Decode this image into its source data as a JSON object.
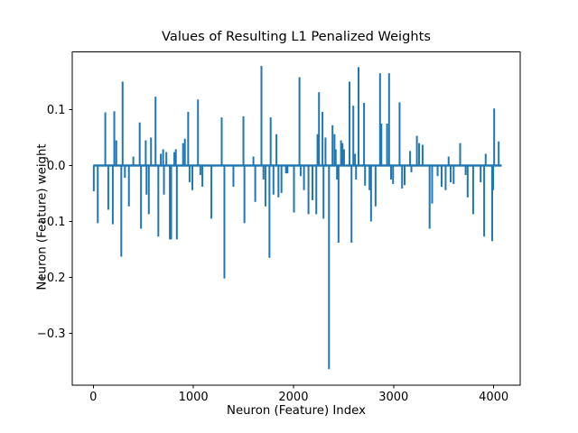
{
  "chart_data": {
    "type": "bar",
    "title": "Values of Resulting L1 Penalized Weights",
    "xlabel": "Neuron (Feature) Index",
    "ylabel": "Neuron (Feature) weight",
    "bar_color": "#1f77b4",
    "grid": false,
    "legend": false,
    "xlim": [
      -210,
      4265
    ],
    "ylim": [
      -0.393,
      0.203
    ],
    "xticks": [
      0,
      1000,
      2000,
      3000,
      4000
    ],
    "xticklabels": [
      "0",
      "1000",
      "2000",
      "3000",
      "4000"
    ],
    "yticks": [
      0.1,
      0.0,
      -0.1,
      -0.2,
      -0.3
    ],
    "yticklabels": [
      "0.1",
      "0.0",
      "−0.1",
      "−0.2",
      "−0.3"
    ],
    "baseline": {
      "from": 0,
      "to": 4080,
      "value": 0.0
    },
    "points": [
      [
        5,
        -0.046
      ],
      [
        45,
        -0.103
      ],
      [
        120,
        0.095
      ],
      [
        150,
        -0.079
      ],
      [
        195,
        -0.105
      ],
      [
        210,
        0.097
      ],
      [
        230,
        0.045
      ],
      [
        280,
        -0.163
      ],
      [
        293,
        0.15
      ],
      [
        316,
        -0.022
      ],
      [
        356,
        -0.073
      ],
      [
        400,
        0.016
      ],
      [
        464,
        0.077
      ],
      [
        477,
        -0.113
      ],
      [
        524,
        0.045
      ],
      [
        532,
        -0.052
      ],
      [
        555,
        -0.087
      ],
      [
        577,
        0.05
      ],
      [
        622,
        0.123
      ],
      [
        650,
        -0.127
      ],
      [
        675,
        0.021
      ],
      [
        698,
        0.029
      ],
      [
        706,
        -0.052
      ],
      [
        730,
        0.024
      ],
      [
        765,
        -0.132
      ],
      [
        778,
        -0.132
      ],
      [
        810,
        0.024
      ],
      [
        825,
        0.029
      ],
      [
        835,
        -0.132
      ],
      [
        897,
        0.04
      ],
      [
        915,
        0.048
      ],
      [
        948,
        0.096
      ],
      [
        962,
        -0.03
      ],
      [
        990,
        -0.044
      ],
      [
        1046,
        0.118
      ],
      [
        1070,
        -0.017
      ],
      [
        1090,
        -0.038
      ],
      [
        1180,
        -0.095
      ],
      [
        1283,
        0.086
      ],
      [
        1310,
        -0.202
      ],
      [
        1400,
        -0.038
      ],
      [
        1500,
        0.088
      ],
      [
        1510,
        -0.103
      ],
      [
        1600,
        0.016
      ],
      [
        1618,
        -0.065
      ],
      [
        1680,
        0.178
      ],
      [
        1700,
        -0.025
      ],
      [
        1720,
        -0.073
      ],
      [
        1760,
        -0.165
      ],
      [
        1772,
        0.086
      ],
      [
        1800,
        -0.052
      ],
      [
        1830,
        0.056
      ],
      [
        1850,
        -0.057
      ],
      [
        1880,
        -0.049
      ],
      [
        1925,
        -0.014
      ],
      [
        1940,
        -0.014
      ],
      [
        2005,
        -0.084
      ],
      [
        2060,
        0.158
      ],
      [
        2072,
        -0.019
      ],
      [
        2105,
        -0.044
      ],
      [
        2150,
        -0.087
      ],
      [
        2190,
        -0.062
      ],
      [
        2228,
        -0.087
      ],
      [
        2240,
        0.056
      ],
      [
        2255,
        0.131
      ],
      [
        2290,
        0.096
      ],
      [
        2300,
        -0.095
      ],
      [
        2320,
        0.05
      ],
      [
        2355,
        -0.364
      ],
      [
        2390,
        0.072
      ],
      [
        2410,
        0.056
      ],
      [
        2422,
        0.029
      ],
      [
        2435,
        -0.025
      ],
      [
        2450,
        -0.138
      ],
      [
        2475,
        0.045
      ],
      [
        2490,
        0.04
      ],
      [
        2505,
        0.029
      ],
      [
        2560,
        0.15
      ],
      [
        2580,
        -0.138
      ],
      [
        2598,
        0.107
      ],
      [
        2615,
        0.021
      ],
      [
        2625,
        -0.025
      ],
      [
        2650,
        0.176
      ],
      [
        2705,
        0.112
      ],
      [
        2715,
        -0.036
      ],
      [
        2760,
        -0.044
      ],
      [
        2775,
        -0.1
      ],
      [
        2820,
        -0.073
      ],
      [
        2865,
        0.165
      ],
      [
        2878,
        0.075
      ],
      [
        2935,
        0.075
      ],
      [
        2955,
        0.165
      ],
      [
        2975,
        -0.025
      ],
      [
        2995,
        -0.033
      ],
      [
        3060,
        0.113
      ],
      [
        3085,
        -0.041
      ],
      [
        3110,
        -0.035
      ],
      [
        3165,
        0.026
      ],
      [
        3178,
        -0.012
      ],
      [
        3233,
        0.053
      ],
      [
        3255,
        0.04
      ],
      [
        3290,
        0.037
      ],
      [
        3360,
        -0.113
      ],
      [
        3385,
        -0.068
      ],
      [
        3440,
        -0.019
      ],
      [
        3480,
        -0.038
      ],
      [
        3520,
        -0.044
      ],
      [
        3550,
        0.016
      ],
      [
        3570,
        -0.03
      ],
      [
        3600,
        -0.033
      ],
      [
        3665,
        0.04
      ],
      [
        3720,
        -0.017
      ],
      [
        3740,
        -0.057
      ],
      [
        3795,
        -0.087
      ],
      [
        3870,
        -0.03
      ],
      [
        3905,
        -0.127
      ],
      [
        3920,
        0.021
      ],
      [
        3985,
        -0.135
      ],
      [
        3995,
        -0.044
      ],
      [
        4005,
        0.102
      ],
      [
        4050,
        0.043
      ]
    ]
  }
}
